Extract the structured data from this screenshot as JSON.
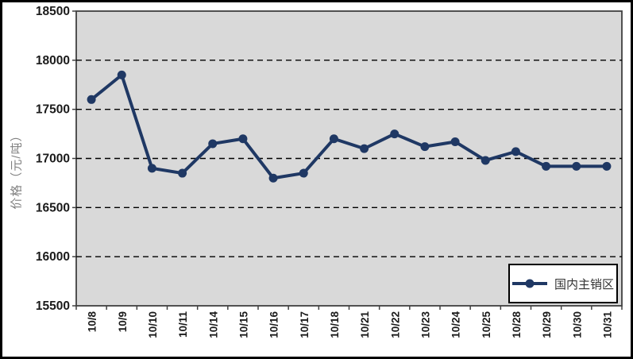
{
  "chart_data": {
    "type": "line",
    "title": "",
    "xlabel": "",
    "ylabel": "价格（元/吨）",
    "categories": [
      "10/8",
      "10/9",
      "10/10",
      "10/11",
      "10/14",
      "10/15",
      "10/16",
      "10/17",
      "10/18",
      "10/21",
      "10/22",
      "10/23",
      "10/24",
      "10/25",
      "10/28",
      "10/29",
      "10/30",
      "10/31"
    ],
    "series": [
      {
        "name": "国内主销区",
        "values": [
          17600,
          17850,
          16900,
          16850,
          17150,
          17200,
          16800,
          16850,
          17200,
          17100,
          17250,
          17120,
          17170,
          16980,
          17070,
          16920,
          16920,
          16920
        ]
      }
    ],
    "ylim": [
      15500,
      18500
    ],
    "ytick_step": 500,
    "grid": "horizontal-dashed",
    "legend_position": "bottom-right-inside",
    "colors": {
      "series": "#1F3864",
      "plot_bg": "#D9D9D9",
      "grid": "#000000",
      "axis_text": "#1a1a1a",
      "ylabel_text": "#808080",
      "plot_border": "#404040",
      "figure_border": "#000000",
      "legend_bg": "#ffffff"
    }
  }
}
